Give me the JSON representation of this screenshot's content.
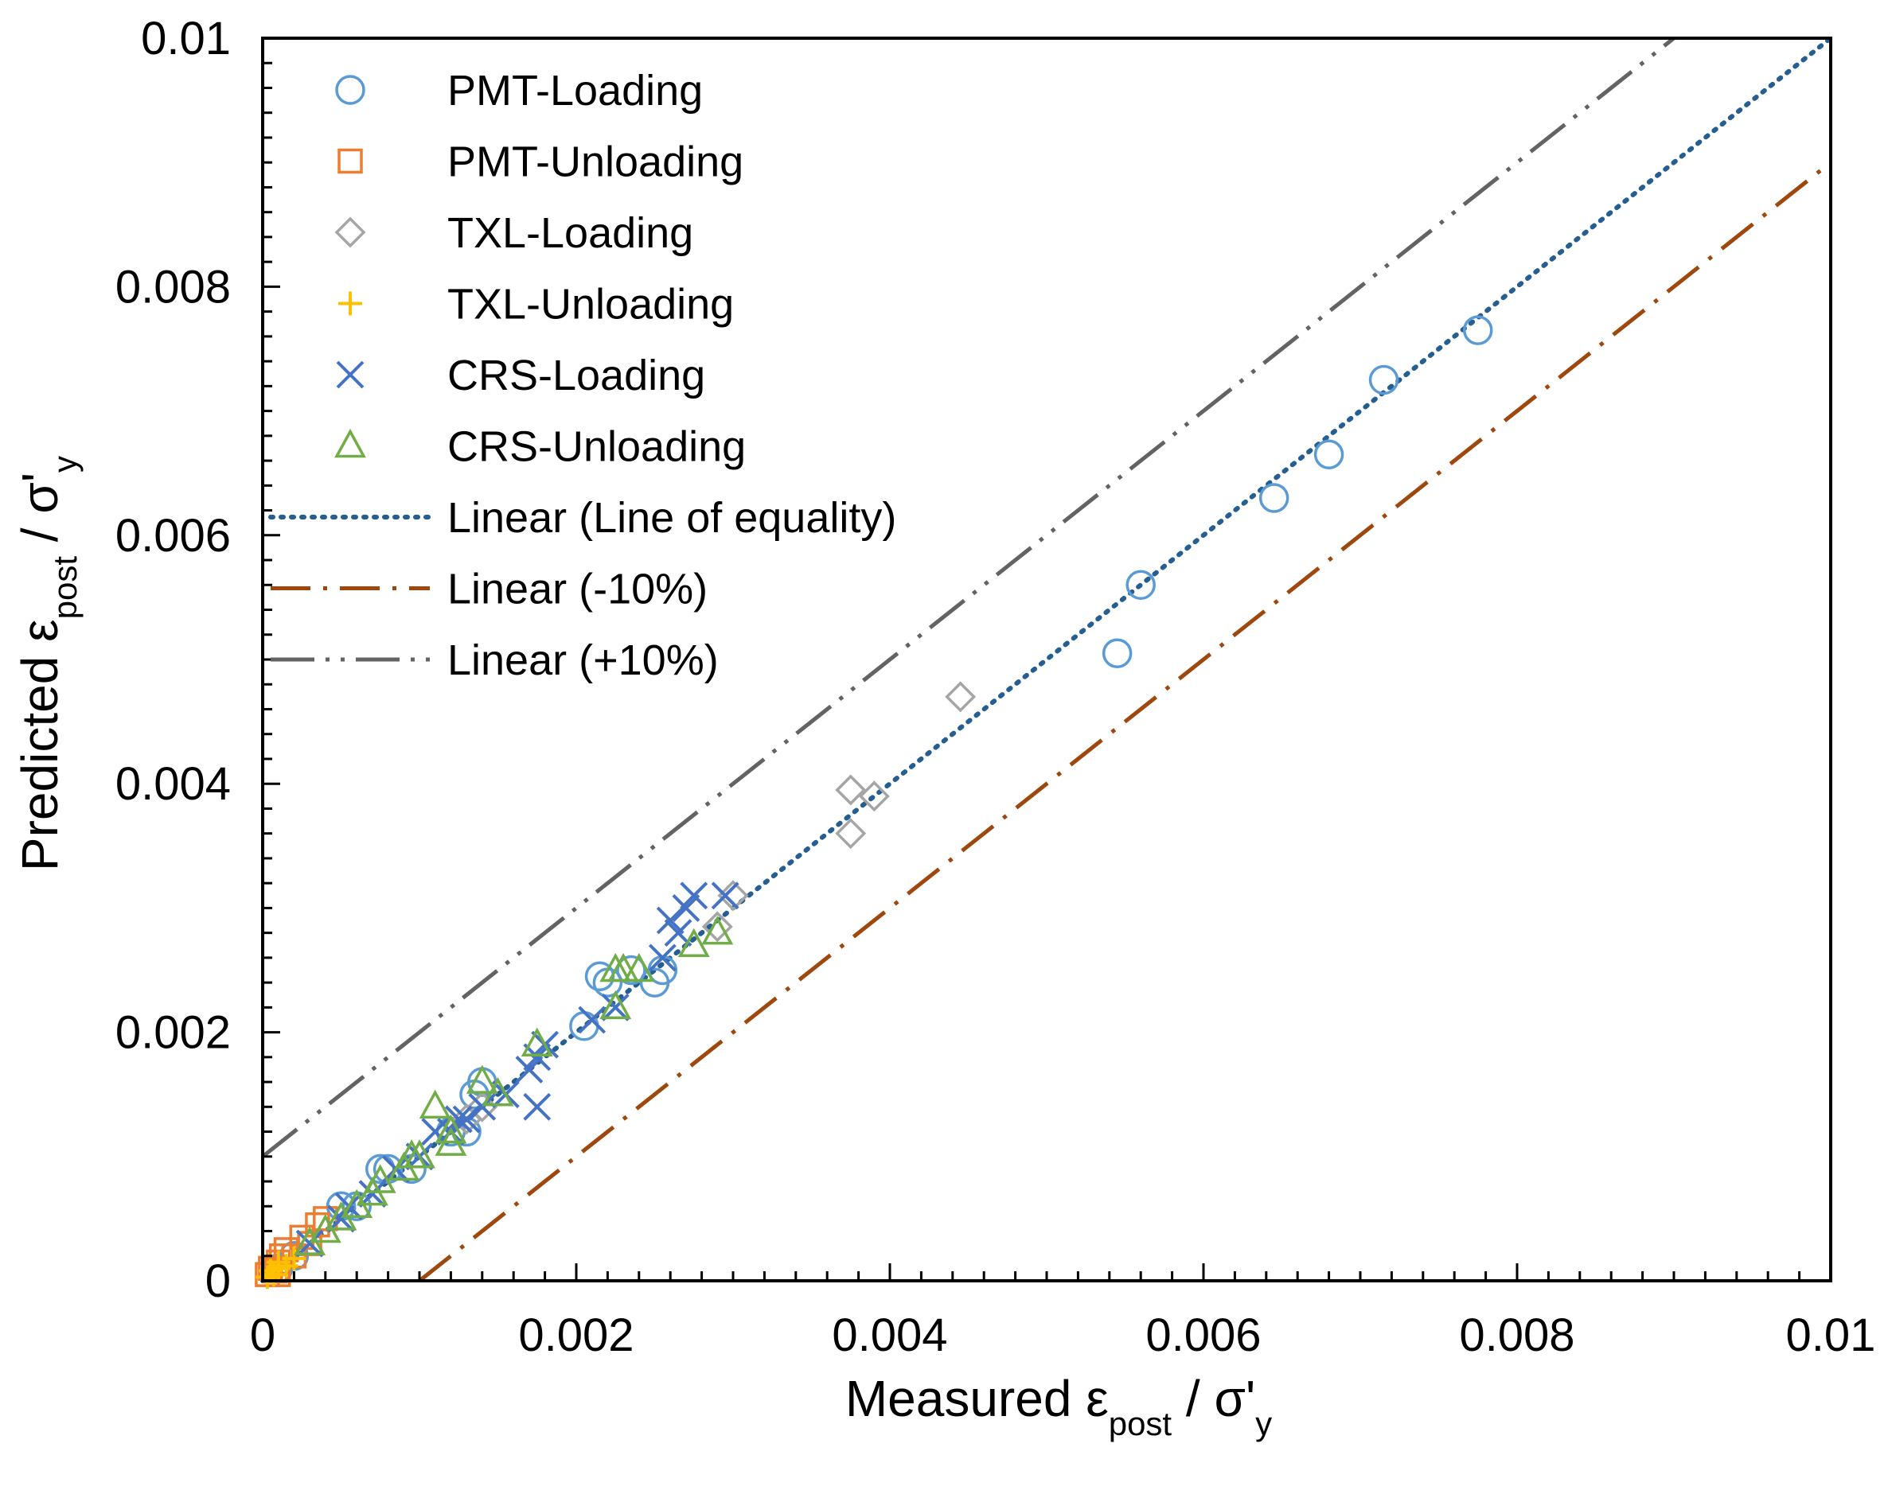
{
  "chart_data": {
    "type": "scatter",
    "xlabel": {
      "prefix": "Measured ",
      "symbol": "ε",
      "sub": "post",
      "mid": " / σ'",
      "sub2": "y"
    },
    "ylabel": {
      "prefix": "Predicted ",
      "symbol": "ε",
      "sub": "post",
      "mid": " / σ'",
      "sub2": "y"
    },
    "xlim": [
      0,
      0.01
    ],
    "ylim": [
      0,
      0.01
    ],
    "x_ticks": [
      "0",
      "0.002",
      "0.004",
      "0.006",
      "0.008",
      "0.01"
    ],
    "y_ticks": [
      "0",
      "0.002",
      "0.004",
      "0.006",
      "0.008",
      "0.01"
    ],
    "legend_position": "top-left",
    "series": [
      {
        "name": "PMT-Loading",
        "marker": "circle",
        "color": "#5B9BD5",
        "points": [
          [
            0.0001,
            0.0001
          ],
          [
            0.0002,
            0.0002
          ],
          [
            0.0005,
            0.0006
          ],
          [
            0.0006,
            0.0006
          ],
          [
            0.00075,
            0.0009
          ],
          [
            0.0008,
            0.0009
          ],
          [
            0.00095,
            0.0009
          ],
          [
            0.0012,
            0.0012
          ],
          [
            0.00135,
            0.0015
          ],
          [
            0.0014,
            0.0016
          ],
          [
            0.0013,
            0.0012
          ],
          [
            0.00205,
            0.00205
          ],
          [
            0.00215,
            0.00245
          ],
          [
            0.0022,
            0.0024
          ],
          [
            0.00235,
            0.0025
          ],
          [
            0.0025,
            0.0024
          ],
          [
            0.00255,
            0.0025
          ],
          [
            0.00545,
            0.00505
          ],
          [
            0.0056,
            0.0056
          ],
          [
            0.00645,
            0.0063
          ],
          [
            0.0068,
            0.00665
          ],
          [
            0.00715,
            0.00725
          ],
          [
            0.00775,
            0.00765
          ]
        ]
      },
      {
        "name": "PMT-Unloading",
        "marker": "square",
        "color": "#ED7D31",
        "points": [
          [
            3e-05,
            5e-05
          ],
          [
            5e-05,
            0.0001
          ],
          [
            0.0001,
            0.00015
          ],
          [
            0.00012,
            0.0002
          ],
          [
            0.00015,
            0.00025
          ],
          [
            0.0002,
            0.0002
          ],
          [
            0.00025,
            0.00035
          ],
          [
            0.0003,
            0.0003
          ],
          [
            0.00035,
            0.00045
          ],
          [
            0.0004,
            0.0005
          ],
          [
            8e-05,
            8e-05
          ],
          [
            0.0001,
            5e-05
          ]
        ]
      },
      {
        "name": "TXL-Loading",
        "marker": "diamond",
        "color": "#A5A5A5",
        "points": [
          [
            0.0029,
            0.00285
          ],
          [
            0.003,
            0.0031
          ],
          [
            0.00375,
            0.00395
          ],
          [
            0.00375,
            0.0036
          ],
          [
            0.0039,
            0.0039
          ],
          [
            0.00445,
            0.0047
          ],
          [
            0.0013,
            0.0013
          ],
          [
            0.0014,
            0.0014
          ]
        ]
      },
      {
        "name": "TXL-Unloading",
        "marker": "plus",
        "color": "#FFC000",
        "points": [
          [
            3e-05,
            3e-05
          ],
          [
            5e-05,
            8e-05
          ],
          [
            0.0001,
            0.0001
          ],
          [
            0.00015,
            0.00012
          ],
          [
            0.0002,
            0.00018
          ],
          [
            0.0001,
            0.00015
          ],
          [
            7e-05,
            5e-05
          ]
        ]
      },
      {
        "name": "CRS-Loading",
        "marker": "x",
        "color": "#4472C4",
        "points": [
          [
            0.0003,
            0.0003
          ],
          [
            0.0005,
            0.0005
          ],
          [
            0.00055,
            0.0006
          ],
          [
            0.0007,
            0.0007
          ],
          [
            0.00085,
            0.0009
          ],
          [
            0.001,
            0.001
          ],
          [
            0.0011,
            0.0012
          ],
          [
            0.0012,
            0.0012
          ],
          [
            0.00125,
            0.0013
          ],
          [
            0.0013,
            0.0013
          ],
          [
            0.0014,
            0.0014
          ],
          [
            0.00155,
            0.0015
          ],
          [
            0.0017,
            0.0017
          ],
          [
            0.00175,
            0.0018
          ],
          [
            0.00175,
            0.0014
          ],
          [
            0.0018,
            0.0019
          ],
          [
            0.0021,
            0.0021
          ],
          [
            0.00225,
            0.0022
          ],
          [
            0.00255,
            0.0026
          ],
          [
            0.0026,
            0.0029
          ],
          [
            0.00265,
            0.0028
          ],
          [
            0.0027,
            0.003
          ],
          [
            0.00275,
            0.0031
          ],
          [
            0.00295,
            0.0031
          ]
        ]
      },
      {
        "name": "CRS-Unloading",
        "marker": "triangle",
        "color": "#70AD47",
        "points": [
          [
            0.0003,
            0.0003
          ],
          [
            0.0004,
            0.0004
          ],
          [
            0.0005,
            0.0005
          ],
          [
            0.0006,
            0.0006
          ],
          [
            0.0007,
            0.0007
          ],
          [
            0.00075,
            0.0008
          ],
          [
            0.0009,
            0.0009
          ],
          [
            0.001,
            0.001
          ],
          [
            0.00095,
            0.001
          ],
          [
            0.0011,
            0.0014
          ],
          [
            0.0012,
            0.0012
          ],
          [
            0.0012,
            0.0011
          ],
          [
            0.0014,
            0.0016
          ],
          [
            0.0015,
            0.0015
          ],
          [
            0.00175,
            0.0019
          ],
          [
            0.00225,
            0.0025
          ],
          [
            0.0023,
            0.0025
          ],
          [
            0.0024,
            0.0025
          ],
          [
            0.00225,
            0.0022
          ],
          [
            0.00275,
            0.0027
          ],
          [
            0.0029,
            0.0028
          ]
        ]
      }
    ],
    "lines": [
      {
        "name": "Linear (Line of equality)",
        "style": "dotted",
        "color": "#255E91",
        "x": [
          0,
          0.01
        ],
        "y": [
          0,
          0.01
        ]
      },
      {
        "name": "Linear (-10%)",
        "style": "dash-dot",
        "color": "#9E480E",
        "x": [
          0.001,
          0.01
        ],
        "y": [
          0,
          0.009
        ]
      },
      {
        "name": "Linear (+10%)",
        "style": "dash-dot-dot",
        "color": "#636363",
        "x": [
          0,
          0.009
        ],
        "y": [
          0.001,
          0.01
        ]
      }
    ]
  }
}
